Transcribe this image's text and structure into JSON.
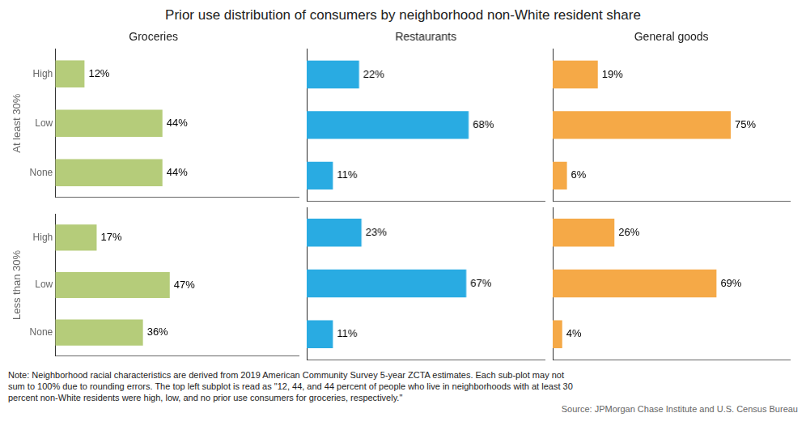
{
  "title": "Prior use distribution of consumers by neighborhood non-White resident share",
  "annotations": [
    "Note: Neighborhood racial characteristics are derived from 2019 American Community Survey 5-year ZCTA estimates. Each sub-plot may not",
    "sum to 100% due to rounding errors. The top left subplot is read as \"12, 44, and 44 percent of people who live in neighborhoods with at least 30",
    "percent non-White residents were high, low, and no prior use consumers for groceries, respectively.\""
  ],
  "source": "Source: JPMorgan Chase Institute and U.S. Census Bureau",
  "chart_data": [
    {
      "type": "bar",
      "orientation": "horizontal",
      "title": "Groceries",
      "ylabel": "At least 30%",
      "categories": [
        "High",
        "Low",
        "None"
      ],
      "values": [
        12,
        44,
        44
      ],
      "value_labels": [
        "12%",
        "44%",
        "44%"
      ],
      "color": "#b5cc7a",
      "xlim": [
        0,
        100
      ],
      "data_labels": true,
      "tick_labels": "y",
      "grid": false,
      "legend": false
    },
    {
      "type": "bar",
      "orientation": "horizontal",
      "title": "Restaurants",
      "categories": [
        "High",
        "Low",
        "None"
      ],
      "values": [
        22,
        68,
        11
      ],
      "value_labels": [
        "22%",
        "68%",
        "11%"
      ],
      "color": "#29abe2",
      "xlim": [
        0,
        100
      ],
      "data_labels": true,
      "tick_labels": false,
      "grid": false,
      "legend": false
    },
    {
      "type": "bar",
      "orientation": "horizontal",
      "title": "General goods",
      "categories": [
        "High",
        "Low",
        "None"
      ],
      "values": [
        19,
        75,
        6
      ],
      "value_labels": [
        "19%",
        "75%",
        "6%"
      ],
      "color": "#f5a947",
      "xlim": [
        0,
        100
      ],
      "data_labels": true,
      "tick_labels": false,
      "grid": false,
      "legend": false
    },
    {
      "type": "bar",
      "orientation": "horizontal",
      "ylabel": "Less than 30%",
      "categories": [
        "High",
        "Low",
        "None"
      ],
      "values": [
        17,
        47,
        36
      ],
      "value_labels": [
        "17%",
        "47%",
        "36%"
      ],
      "color": "#b5cc7a",
      "xlim": [
        0,
        100
      ],
      "data_labels": true,
      "tick_labels": "y",
      "grid": false,
      "legend": false
    },
    {
      "type": "bar",
      "orientation": "horizontal",
      "categories": [
        "High",
        "Low",
        "None"
      ],
      "values": [
        23,
        67,
        11
      ],
      "value_labels": [
        "23%",
        "67%",
        "11%"
      ],
      "color": "#29abe2",
      "xlim": [
        0,
        100
      ],
      "data_labels": true,
      "tick_labels": false,
      "grid": false,
      "legend": false
    },
    {
      "type": "bar",
      "orientation": "horizontal",
      "categories": [
        "High",
        "Low",
        "None"
      ],
      "values": [
        26,
        69,
        4
      ],
      "value_labels": [
        "26%",
        "69%",
        "4%"
      ],
      "color": "#f5a947",
      "xlim": [
        0,
        100
      ],
      "data_labels": true,
      "tick_labels": false,
      "grid": false,
      "legend": false
    }
  ]
}
